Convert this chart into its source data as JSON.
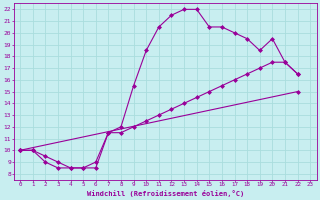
{
  "xlabel": "Windchill (Refroidissement éolien,°C)",
  "bg_color": "#c8eef0",
  "line_color": "#990099",
  "grid_color": "#aadddd",
  "xlim": [
    -0.5,
    23.5
  ],
  "ylim": [
    7.5,
    22.5
  ],
  "xticks": [
    0,
    1,
    2,
    3,
    4,
    5,
    6,
    7,
    8,
    9,
    10,
    11,
    12,
    13,
    14,
    15,
    16,
    17,
    18,
    19,
    20,
    21,
    22,
    23
  ],
  "yticks": [
    8,
    9,
    10,
    11,
    12,
    13,
    14,
    15,
    16,
    17,
    18,
    19,
    20,
    21,
    22
  ],
  "line1_x": [
    0,
    1,
    2,
    3,
    4,
    5,
    6,
    7,
    8,
    9,
    10,
    11,
    12,
    13,
    14,
    15,
    16,
    17,
    18,
    19,
    20,
    21,
    22
  ],
  "line1_y": [
    10,
    10,
    9,
    8.5,
    8.5,
    8.5,
    8.5,
    11.5,
    12,
    15.5,
    18.5,
    20.5,
    21.5,
    22,
    22,
    20.5,
    20.5,
    20,
    19.5,
    18.5,
    19.5,
    17.5,
    16.5
  ],
  "line2_x": [
    0,
    1,
    2,
    3,
    4,
    5,
    6,
    7,
    8,
    9,
    10,
    11,
    12,
    13,
    14,
    15,
    16,
    17,
    18,
    19,
    20,
    21,
    22
  ],
  "line2_y": [
    10,
    10,
    9.5,
    9,
    8.5,
    8.5,
    9,
    11.5,
    11.5,
    12,
    12.5,
    13,
    13.5,
    14,
    14.5,
    15,
    15.5,
    16,
    16.5,
    17,
    17.5,
    17.5,
    16.5
  ],
  "line3_x": [
    0,
    22
  ],
  "line3_y": [
    10,
    15
  ]
}
